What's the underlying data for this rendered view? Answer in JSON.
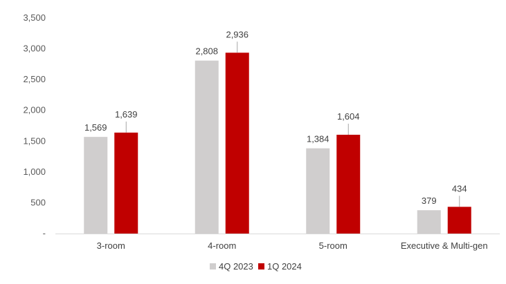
{
  "chart_data": {
    "type": "bar",
    "categories": [
      "3-room",
      "4-room",
      "5-room",
      "Executive & Multi-gen"
    ],
    "series": [
      {
        "name": "4Q 2023",
        "values": [
          1569,
          2808,
          1384,
          379
        ],
        "labels": [
          "1,569",
          "2,808",
          "1,384",
          "379"
        ],
        "color": "#d0cece"
      },
      {
        "name": "1Q 2024",
        "values": [
          1639,
          2936,
          1604,
          434
        ],
        "labels": [
          "1,639",
          "2,936",
          "1,604",
          "434"
        ],
        "color": "#c00000"
      }
    ],
    "ylim": [
      0,
      3500
    ],
    "yticks": [
      0,
      500,
      1000,
      1500,
      2000,
      2500,
      3000,
      3500
    ],
    "ytick_labels": [
      "-",
      "500",
      "1,000",
      "1,500",
      "2,000",
      "2,500",
      "3,000",
      "3,500"
    ],
    "grid": false,
    "legend": "bottom"
  }
}
